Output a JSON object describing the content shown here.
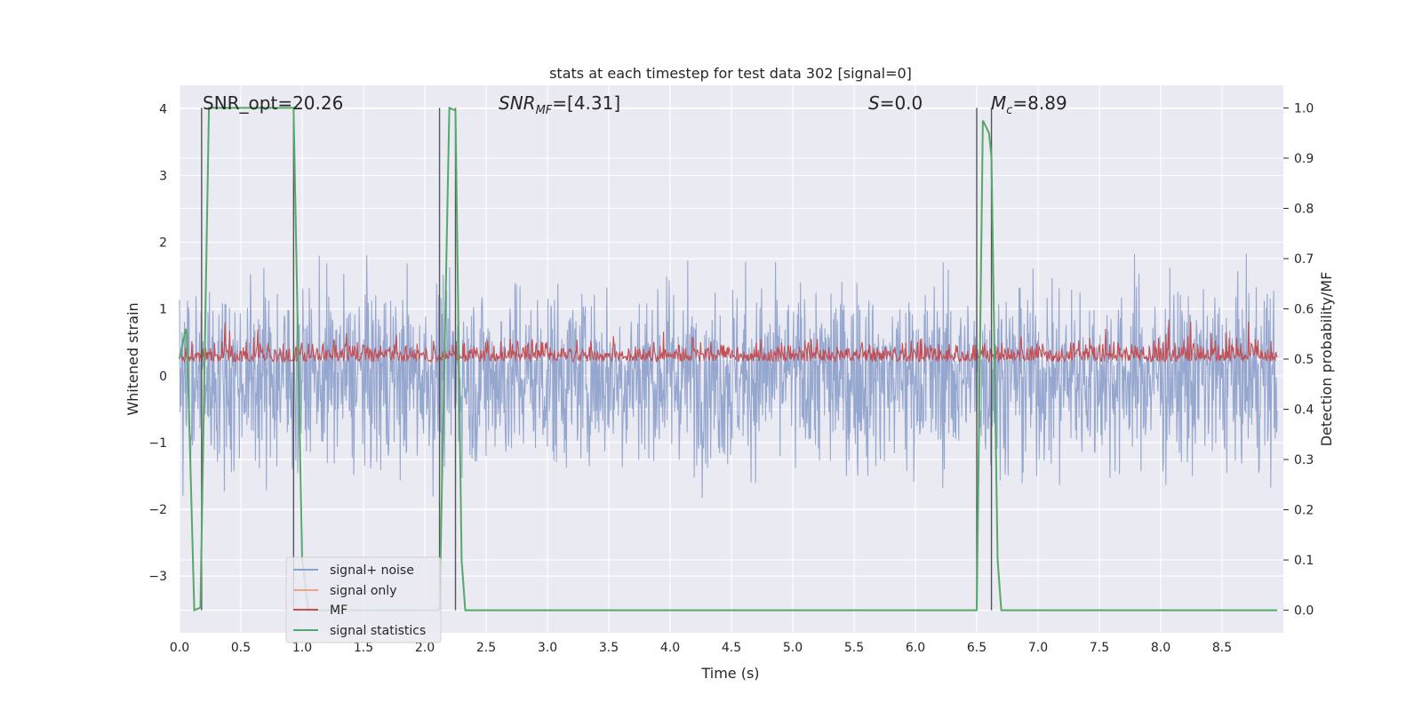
{
  "chart_data": {
    "type": "line",
    "title": "stats at each timestep for test data 302 [signal=0]",
    "xlabel": "Time (s)",
    "ylabel": "Whitened strain",
    "y2label": "Detection probability/MF",
    "xlim": [
      0.0,
      9.0
    ],
    "ylim": [
      -3.85,
      4.35
    ],
    "y2lim": [
      -0.045,
      1.045
    ],
    "grid": true,
    "legend_position": "lower-left",
    "x_ticks": [
      "0.0",
      "0.5",
      "1.0",
      "1.5",
      "2.0",
      "2.5",
      "3.0",
      "3.5",
      "4.0",
      "4.5",
      "5.0",
      "5.5",
      "6.0",
      "6.5",
      "7.0",
      "7.5",
      "8.0",
      "8.5"
    ],
    "x_tick_values": [
      0.0,
      0.5,
      1.0,
      1.5,
      2.0,
      2.5,
      3.0,
      3.5,
      4.0,
      4.5,
      5.0,
      5.5,
      6.0,
      6.5,
      7.0,
      7.5,
      8.0,
      8.5
    ],
    "y_ticks": [
      "−3",
      "−2",
      "−1",
      "0",
      "1",
      "2",
      "3",
      "4"
    ],
    "y_tick_values": [
      -3,
      -2,
      -1,
      0,
      1,
      2,
      3,
      4
    ],
    "y2_ticks": [
      "0.0",
      "0.1",
      "0.2",
      "0.3",
      "0.4",
      "0.5",
      "0.6",
      "0.7",
      "0.8",
      "0.9",
      "1.0"
    ],
    "y2_tick_values": [
      0.0,
      0.1,
      0.2,
      0.3,
      0.4,
      0.5,
      0.6,
      0.7,
      0.8,
      0.9,
      1.0
    ],
    "annotations": [
      {
        "text": "SNR_opt=20.26",
        "x": 0.19,
        "y": 4.05
      },
      {
        "text": "SNR_MF=[4.31]",
        "x": 2.6,
        "y": 4.05
      },
      {
        "text": "S=0.0",
        "x": 5.6,
        "y": 4.05
      },
      {
        "text": "M_c=8.89",
        "x": 6.6,
        "y": 4.05
      }
    ],
    "series": [
      {
        "name": "signal+ noise",
        "color": "#8da0cb",
        "axis": "left",
        "description_range": [
          -3.5,
          4.0
        ]
      },
      {
        "name": "signal only",
        "color": "#f0a382",
        "axis": "left"
      },
      {
        "name": "MF",
        "color": "#c44e52",
        "axis": "right",
        "level": 0.51
      },
      {
        "name": "signal statistics",
        "color": "#55a868",
        "axis": "right",
        "x": [
          0.0,
          0.05,
          0.06,
          0.12,
          0.17,
          0.24,
          0.93,
          1.0,
          1.05,
          2.1,
          2.12,
          2.2,
          2.25,
          2.3,
          2.33,
          6.5,
          6.55,
          6.6,
          6.62,
          6.67,
          6.7,
          8.95
        ],
        "y": [
          0.5,
          0.56,
          0.55,
          0.0,
          0.005,
          1.0,
          1.0,
          0.1,
          0.0,
          0.0,
          0.005,
          1.0,
          0.995,
          0.1,
          0.0,
          0.0,
          0.975,
          0.95,
          0.9,
          0.1,
          0.0,
          0.0
        ]
      }
    ],
    "vlines": [
      0.18,
      0.93,
      2.12,
      2.25,
      6.5,
      6.62
    ]
  },
  "legend": {
    "items": [
      {
        "label": "signal+ noise",
        "color": "#8da0cb"
      },
      {
        "label": "signal only",
        "color": "#f0a382"
      },
      {
        "label": "MF",
        "color": "#c44e52"
      },
      {
        "label": "signal statistics",
        "color": "#55a868"
      }
    ]
  }
}
